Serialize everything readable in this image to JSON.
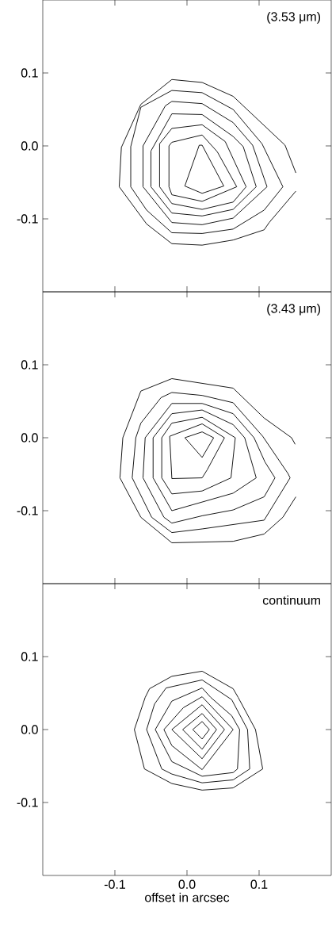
{
  "chart_data": [
    {
      "type": "line",
      "annotations": [
        "(3.53 μm)"
      ],
      "xlim": [
        -0.2,
        0.2
      ],
      "ylim": [
        -0.2,
        0.2
      ],
      "xticks": [
        {
          "value": -0.1,
          "label": null
        },
        {
          "value": 0.0,
          "label": null
        },
        {
          "value": 0.1,
          "label": null
        }
      ],
      "yticks": [
        {
          "value": -0.1,
          "label": "-0.1"
        },
        {
          "value": 0.0,
          "label": "0.0"
        },
        {
          "value": 0.1,
          "label": "0.1"
        }
      ],
      "tick_labels": "y",
      "marker": "none",
      "line_style": "solid",
      "series": [
        {
          "color": "#000000",
          "x": [
            0.151,
            0.136,
            0.064,
            0.021,
            -0.021,
            -0.064,
            -0.091,
            -0.094,
            -0.056,
            -0.021,
            0.021,
            0.064,
            0.107,
            0.114,
            0.151
          ],
          "values": [
            -0.037,
            0.001,
            0.068,
            0.087,
            0.091,
            0.057,
            -0.002,
            -0.056,
            -0.107,
            -0.134,
            -0.136,
            -0.129,
            -0.115,
            -0.105,
            -0.062
          ]
        },
        {
          "color": "#000000",
          "x": [
            -0.078,
            -0.078,
            -0.064,
            -0.021,
            0.021,
            0.064,
            0.104,
            0.133
          ],
          "values": [
            -0.056,
            -0.001,
            0.053,
            0.076,
            0.073,
            0.05,
            0.003,
            -0.056
          ]
        },
        {
          "color": "#000000",
          "x": [
            -0.078,
            -0.056,
            -0.021,
            0.021,
            0.064,
            0.107,
            0.133
          ],
          "values": [
            -0.056,
            -0.088,
            -0.119,
            -0.12,
            -0.114,
            -0.088,
            -0.056
          ]
        },
        {
          "color": "#000000",
          "x": [
            -0.061,
            -0.061,
            -0.03,
            -0.021,
            0.021,
            0.064,
            0.091,
            0.111
          ],
          "values": [
            -0.056,
            0.0,
            0.055,
            0.061,
            0.058,
            0.032,
            0.001,
            -0.056
          ]
        },
        {
          "color": "#000000",
          "x": [
            -0.061,
            -0.021,
            0.021,
            0.064,
            0.111
          ],
          "values": [
            -0.056,
            -0.105,
            -0.108,
            -0.099,
            -0.056
          ]
        },
        {
          "color": "#000000",
          "x": [
            -0.05,
            -0.05,
            -0.021,
            0.021,
            0.064,
            0.078,
            0.096
          ],
          "values": [
            -0.056,
            -0.007,
            0.044,
            0.043,
            0.013,
            -0.001,
            -0.056
          ]
        },
        {
          "color": "#000000",
          "x": [
            -0.05,
            -0.021,
            0.021,
            0.064,
            0.096
          ],
          "values": [
            -0.056,
            -0.092,
            -0.096,
            -0.087,
            -0.056
          ]
        },
        {
          "color": "#000000",
          "x": [
            -0.038,
            -0.038,
            -0.021,
            0.021,
            0.053,
            0.082
          ],
          "values": [
            -0.056,
            0.003,
            0.024,
            0.029,
            0.006,
            -0.056
          ]
        },
        {
          "color": "#000000",
          "x": [
            -0.038,
            -0.021,
            0.021,
            0.064,
            0.082
          ],
          "values": [
            -0.056,
            -0.079,
            -0.087,
            -0.077,
            -0.056
          ]
        },
        {
          "color": "#000000",
          "x": [
            -0.025,
            -0.021,
            0.021,
            0.042,
            0.069
          ],
          "values": [
            0.0,
            0.005,
            0.015,
            -0.008,
            -0.056
          ]
        },
        {
          "color": "#000000",
          "x": [
            -0.025,
            -0.025,
            -0.021,
            0.021,
            0.069
          ],
          "values": [
            0.0,
            -0.056,
            -0.067,
            -0.076,
            -0.056
          ]
        },
        {
          "color": "#000000",
          "x": [
            -0.003,
            0.017,
            0.021,
            0.051
          ],
          "values": [
            -0.055,
            0.001,
            0.001,
            -0.055
          ]
        },
        {
          "color": "#000000",
          "x": [
            -0.003,
            0.021,
            0.051
          ],
          "values": [
            -0.055,
            -0.065,
            -0.055
          ]
        }
      ]
    },
    {
      "type": "line",
      "annotations": [
        "(3.43 μm)"
      ],
      "xlim": [
        -0.2,
        0.2
      ],
      "ylim": [
        -0.2,
        0.2
      ],
      "xticks": [
        {
          "value": -0.1,
          "label": null
        },
        {
          "value": 0.0,
          "label": null
        },
        {
          "value": 0.1,
          "label": null
        }
      ],
      "yticks": [
        {
          "value": -0.1,
          "label": "-0.1"
        },
        {
          "value": 0.0,
          "label": "0.0"
        },
        {
          "value": 0.1,
          "label": "0.1"
        }
      ],
      "tick_labels": "y",
      "marker": "none",
      "line_style": "solid",
      "series": [
        {
          "color": "#000000",
          "x": [
            0.15,
            0.145,
            0.107,
            0.064,
            -0.021,
            -0.064,
            -0.089,
            -0.093,
            -0.064,
            -0.021,
            0.064,
            0.107,
            0.133,
            0.151
          ],
          "values": [
            -0.009,
            0.0,
            0.027,
            0.068,
            0.081,
            0.064,
            0.0,
            -0.055,
            -0.109,
            -0.144,
            -0.142,
            -0.132,
            -0.109,
            -0.081
          ]
        },
        {
          "color": "#000000",
          "x": [
            -0.076,
            -0.071,
            -0.064,
            -0.036,
            -0.021,
            0.021,
            0.064,
            0.105,
            0.14,
            0.143
          ],
          "values": [
            -0.055,
            0.0,
            0.02,
            0.055,
            0.062,
            0.058,
            0.048,
            0.002,
            -0.049,
            -0.055
          ]
        },
        {
          "color": "#000000",
          "x": [
            -0.076,
            -0.049,
            -0.021,
            0.021,
            0.107,
            0.143
          ],
          "values": [
            -0.055,
            -0.109,
            -0.13,
            -0.125,
            -0.113,
            -0.055
          ]
        },
        {
          "color": "#000000",
          "x": [
            -0.061,
            -0.058,
            -0.021,
            0.021,
            0.064,
            0.093,
            0.108,
            0.122
          ],
          "values": [
            -0.055,
            0.0,
            0.047,
            0.047,
            0.033,
            0.0,
            -0.033,
            -0.055
          ]
        },
        {
          "color": "#000000",
          "x": [
            -0.061,
            -0.032,
            -0.021,
            0.021,
            0.064,
            0.107,
            0.122
          ],
          "values": [
            -0.055,
            -0.109,
            -0.117,
            -0.107,
            -0.099,
            -0.081,
            -0.055
          ]
        },
        {
          "color": "#000000",
          "x": [
            -0.047,
            -0.047,
            -0.021,
            0.021,
            0.064,
            0.08,
            0.096
          ],
          "values": [
            -0.055,
            0.0,
            0.033,
            0.038,
            0.018,
            0.0,
            -0.055
          ]
        },
        {
          "color": "#000000",
          "x": [
            -0.047,
            -0.021,
            0.064,
            0.096
          ],
          "values": [
            -0.055,
            -0.1,
            -0.076,
            -0.055
          ]
        },
        {
          "color": "#000000",
          "x": [
            -0.035,
            -0.035,
            -0.021,
            0.021,
            0.067
          ],
          "values": [
            -0.055,
            0.0,
            0.02,
            0.028,
            0.0
          ]
        },
        {
          "color": "#000000",
          "x": [
            -0.035,
            -0.021,
            0.021,
            0.061,
            0.067
          ],
          "values": [
            -0.055,
            -0.077,
            -0.073,
            -0.055,
            0.0
          ]
        },
        {
          "color": "#000000",
          "x": [
            -0.024,
            0.021,
            0.052
          ],
          "values": [
            0.002,
            0.019,
            0.0
          ]
        },
        {
          "color": "#000000",
          "x": [
            -0.024,
            -0.021,
            0.021,
            0.028,
            0.052
          ],
          "values": [
            0.002,
            -0.056,
            -0.055,
            -0.044,
            0.0
          ]
        },
        {
          "color": "#000000",
          "x": [
            -0.003,
            0.021,
            0.037
          ],
          "values": [
            0.0,
            0.008,
            0.0
          ]
        },
        {
          "color": "#000000",
          "x": [
            -0.003,
            0.021,
            0.037
          ],
          "values": [
            0.0,
            -0.027,
            0.0
          ]
        }
      ]
    },
    {
      "type": "line",
      "annotations": [
        "continuum"
      ],
      "xlabel": "offset in arcsec",
      "xlim": [
        -0.2,
        0.2
      ],
      "ylim": [
        -0.2,
        0.2
      ],
      "xticks": [
        {
          "value": -0.1,
          "label": "-0.1"
        },
        {
          "value": 0.0,
          "label": "0.0"
        },
        {
          "value": 0.1,
          "label": "0.1"
        }
      ],
      "yticks": [
        {
          "value": -0.1,
          "label": "-0.1"
        },
        {
          "value": 0.0,
          "label": "0.0"
        },
        {
          "value": 0.1,
          "label": "0.1"
        }
      ],
      "marker": "none",
      "line_style": "solid",
      "series": [
        {
          "color": "#000000",
          "x": [
            -0.073,
            -0.058,
            -0.052,
            -0.021,
            0.021,
            0.064,
            0.071,
            0.095,
            0.105
          ],
          "values": [
            0.0,
            0.044,
            0.056,
            0.073,
            0.08,
            0.056,
            0.044,
            0.0,
            -0.054
          ]
        },
        {
          "color": "#000000",
          "x": [
            -0.073,
            -0.059,
            -0.021,
            0.021,
            0.064,
            0.105
          ],
          "values": [
            0.0,
            -0.054,
            -0.074,
            -0.083,
            -0.08,
            -0.054
          ]
        },
        {
          "color": "#000000",
          "x": [
            -0.056,
            -0.045,
            -0.029,
            0.021,
            0.062,
            0.084,
            0.087
          ],
          "values": [
            0.0,
            0.035,
            0.057,
            0.068,
            0.041,
            0.0,
            -0.054
          ]
        },
        {
          "color": "#000000",
          "x": [
            -0.056,
            -0.035,
            -0.021,
            0.021,
            0.064,
            0.087
          ],
          "values": [
            0.0,
            -0.054,
            -0.061,
            -0.073,
            -0.069,
            -0.054
          ]
        },
        {
          "color": "#000000",
          "x": [
            -0.044,
            -0.021,
            0.021,
            0.033,
            0.062,
            0.073
          ],
          "values": [
            0.0,
            0.039,
            0.057,
            0.044,
            0.019,
            0.0
          ]
        },
        {
          "color": "#000000",
          "x": [
            -0.044,
            -0.021,
            0.021,
            0.064,
            0.07,
            0.073
          ],
          "values": [
            0.0,
            -0.044,
            -0.064,
            -0.059,
            -0.054,
            0.0
          ]
        },
        {
          "color": "#000000",
          "x": [
            -0.032,
            -0.005,
            0.021,
            0.064
          ],
          "values": [
            0.0,
            0.03,
            0.045,
            0.0
          ]
        },
        {
          "color": "#000000",
          "x": [
            -0.032,
            -0.021,
            0.021,
            0.064
          ],
          "values": [
            0.0,
            -0.022,
            -0.055,
            0.0
          ]
        },
        {
          "color": "#000000",
          "x": [
            -0.021,
            0.021,
            0.052
          ],
          "values": [
            0.0,
            0.034,
            0.0
          ]
        },
        {
          "color": "#000000",
          "x": [
            -0.021,
            0.021,
            0.052
          ],
          "values": [
            0.0,
            -0.04,
            0.0
          ]
        },
        {
          "color": "#000000",
          "x": [
            -0.006,
            0.021,
            0.041
          ],
          "values": [
            0.0,
            0.022,
            0.0
          ]
        },
        {
          "color": "#000000",
          "x": [
            -0.006,
            0.021,
            0.041
          ],
          "values": [
            0.0,
            -0.027,
            0.0
          ]
        },
        {
          "color": "#000000",
          "x": [
            0.008,
            0.021,
            0.031
          ],
          "values": [
            0.0,
            0.011,
            0.0
          ]
        },
        {
          "color": "#000000",
          "x": [
            0.008,
            0.021,
            0.031
          ],
          "values": [
            0.0,
            -0.013,
            0.0
          ]
        }
      ]
    }
  ]
}
